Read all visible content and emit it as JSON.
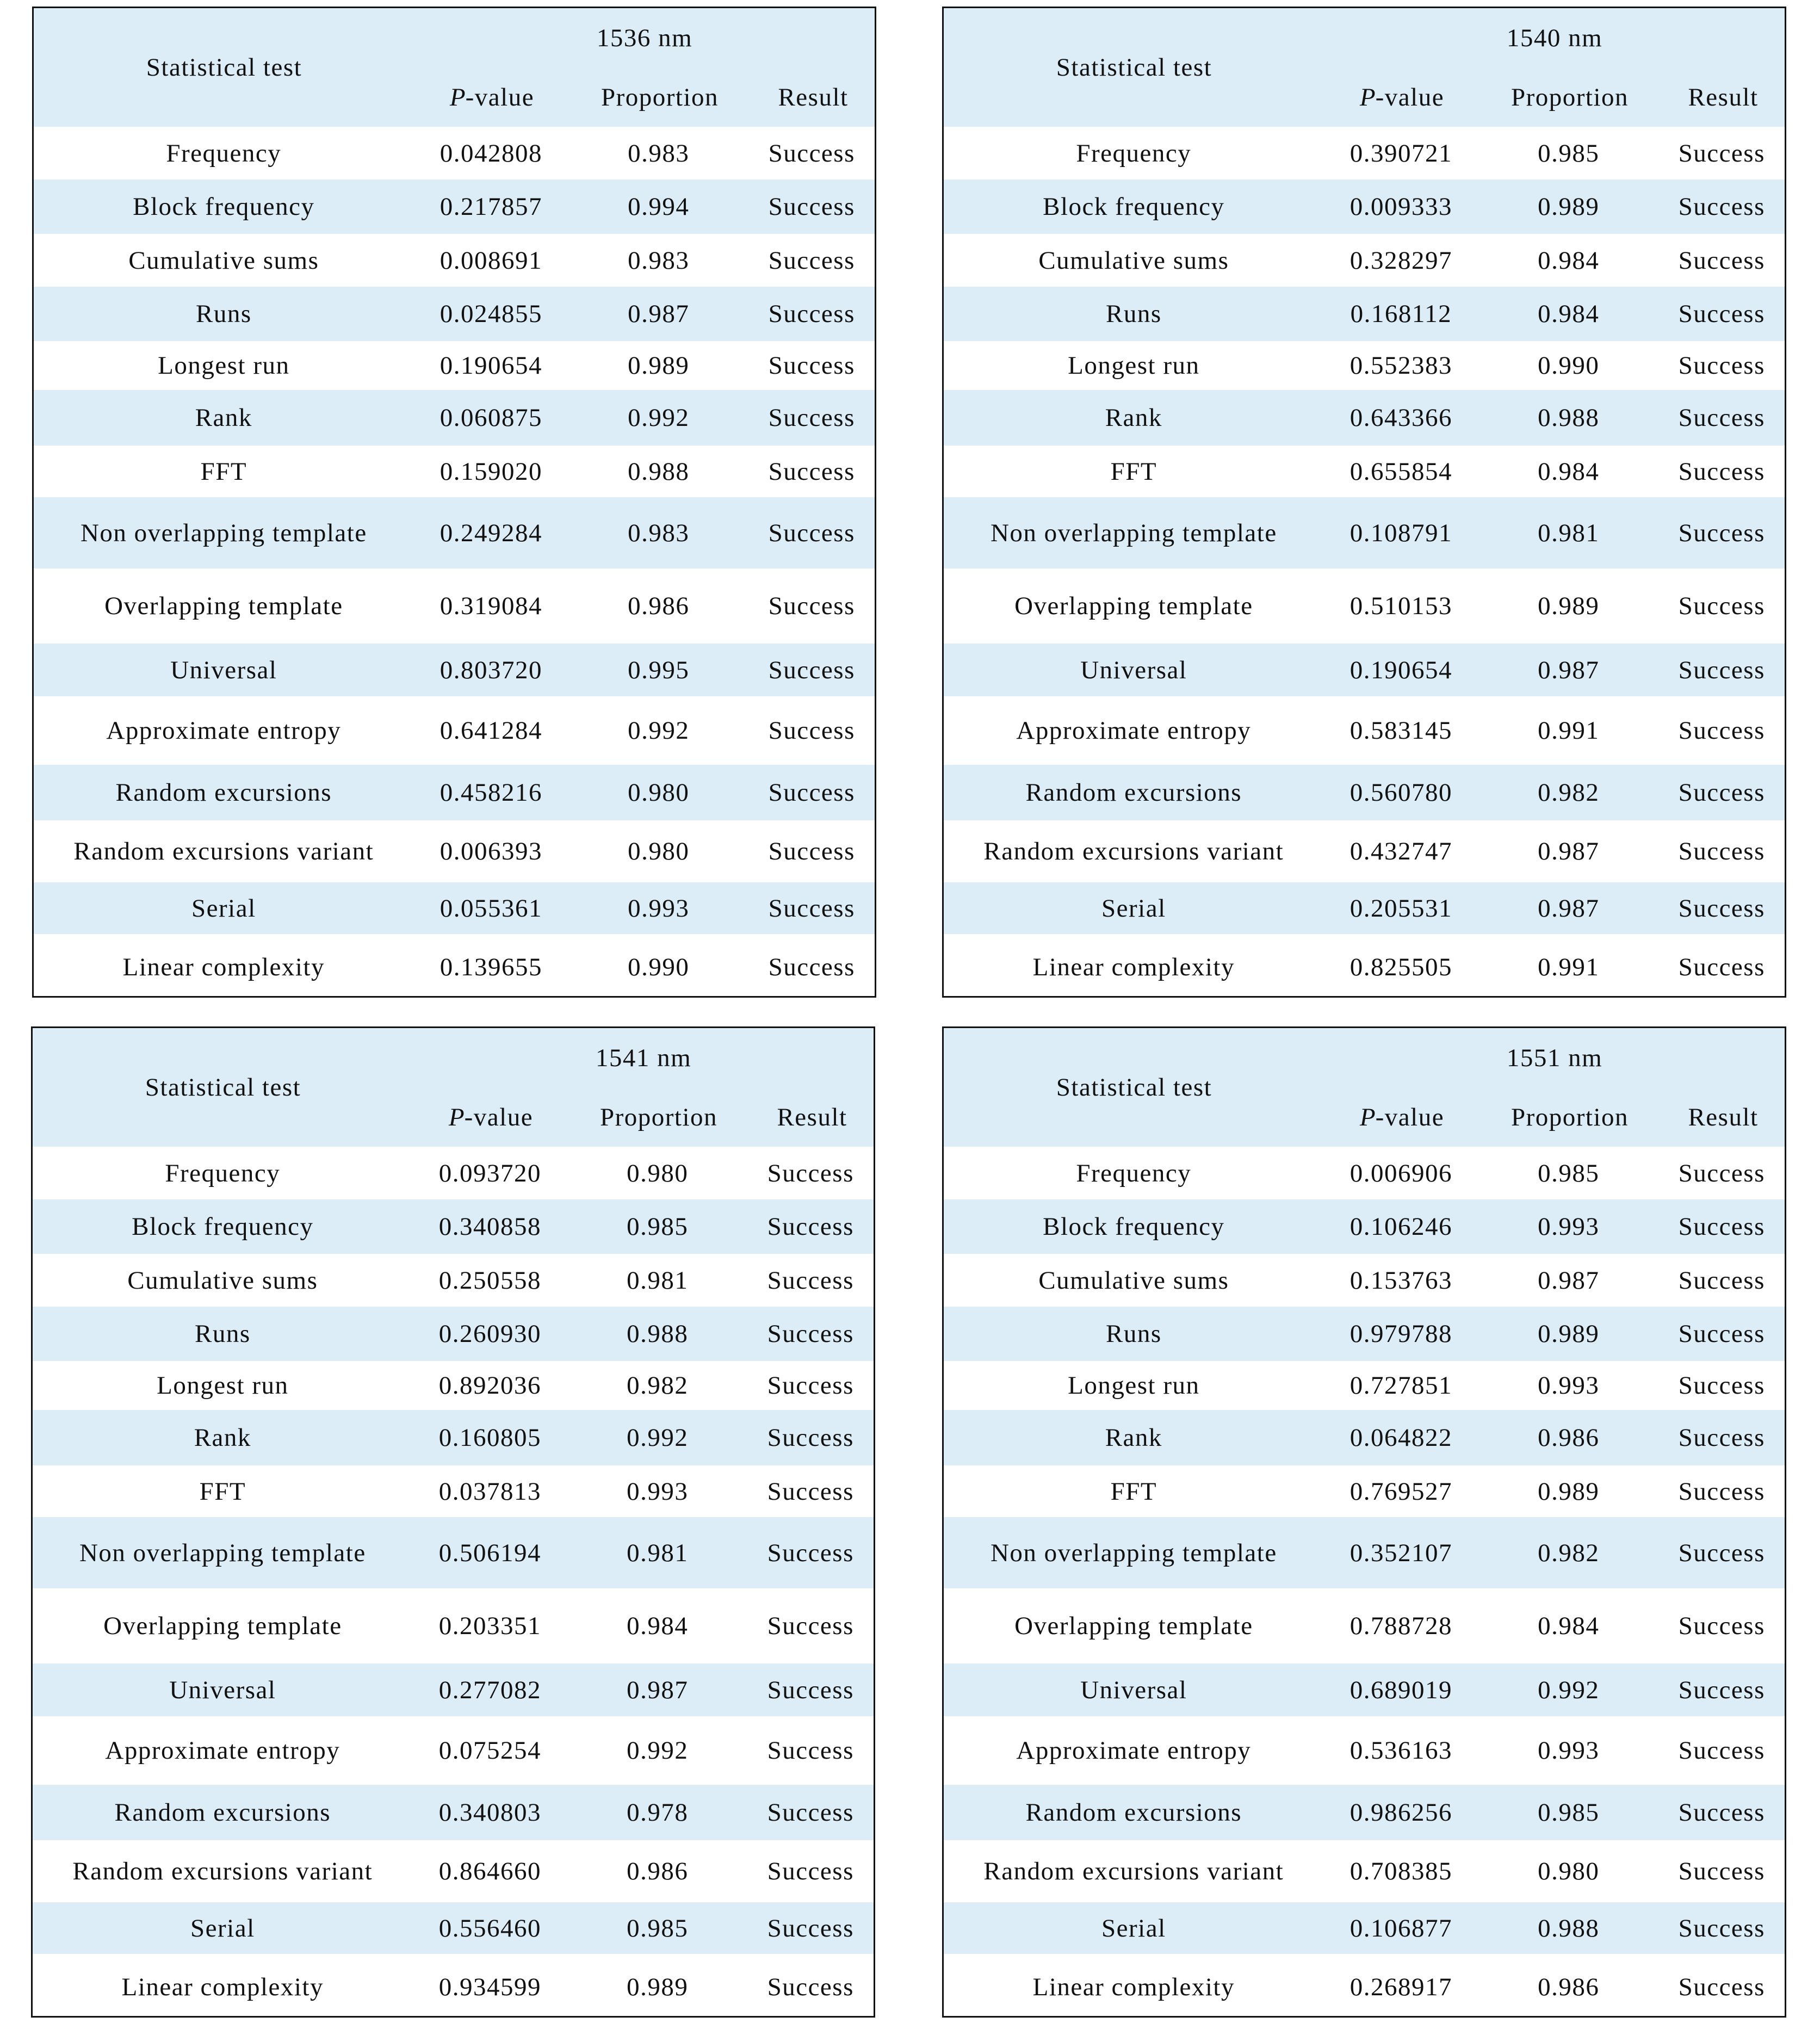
{
  "headers": {
    "statistical_test": "Statistical test",
    "p_italic": "P",
    "p_suffix": "-value",
    "proportion": "Proportion",
    "result": "Result"
  },
  "row_bg_color": "#dcedf8",
  "tests": [
    "Frequency",
    "Block frequency",
    "Cumulative sums",
    "Runs",
    "Longest run",
    "Rank",
    "FFT",
    "Non overlapping template",
    "Overlapping template",
    "Universal",
    "Approximate entropy",
    "Random excursions",
    "Random excursions variant",
    "Serial",
    "Linear complexity"
  ],
  "tables": [
    {
      "wavelength": "1536 nm",
      "p_values": [
        "0.042808",
        "0.217857",
        "0.008691",
        "0.024855",
        "0.190654",
        "0.060875",
        "0.159020",
        "0.249284",
        "0.319084",
        "0.803720",
        "0.641284",
        "0.458216",
        "0.006393",
        "0.055361",
        "0.139655"
      ],
      "proportions": [
        "0.983",
        "0.994",
        "0.983",
        "0.987",
        "0.989",
        "0.992",
        "0.988",
        "0.983",
        "0.986",
        "0.995",
        "0.992",
        "0.980",
        "0.980",
        "0.993",
        "0.990"
      ],
      "results": [
        "Success",
        "Success",
        "Success",
        "Success",
        "Success",
        "Success",
        "Success",
        "Success",
        "Success",
        "Success",
        "Success",
        "Success",
        "Success",
        "Success",
        "Success"
      ]
    },
    {
      "wavelength": "1540 nm",
      "p_values": [
        "0.390721",
        "0.009333",
        "0.328297",
        "0.168112",
        "0.552383",
        "0.643366",
        "0.655854",
        "0.108791",
        "0.510153",
        "0.190654",
        "0.583145",
        "0.560780",
        "0.432747",
        "0.205531",
        "0.825505"
      ],
      "proportions": [
        "0.985",
        "0.989",
        "0.984",
        "0.984",
        "0.990",
        "0.988",
        "0.984",
        "0.981",
        "0.989",
        "0.987",
        "0.991",
        "0.982",
        "0.987",
        "0.987",
        "0.991"
      ],
      "results": [
        "Success",
        "Success",
        "Success",
        "Success",
        "Success",
        "Success",
        "Success",
        "Success",
        "Success",
        "Success",
        "Success",
        "Success",
        "Success",
        "Success",
        "Success"
      ]
    },
    {
      "wavelength": "1541 nm",
      "p_values": [
        "0.093720",
        "0.340858",
        "0.250558",
        "0.260930",
        "0.892036",
        "0.160805",
        "0.037813",
        "0.506194",
        "0.203351",
        "0.277082",
        "0.075254",
        "0.340803",
        "0.864660",
        "0.556460",
        "0.934599"
      ],
      "proportions": [
        "0.980",
        "0.985",
        "0.981",
        "0.988",
        "0.982",
        "0.992",
        "0.993",
        "0.981",
        "0.984",
        "0.987",
        "0.992",
        "0.978",
        "0.986",
        "0.985",
        "0.989"
      ],
      "results": [
        "Success",
        "Success",
        "Success",
        "Success",
        "Success",
        "Success",
        "Success",
        "Success",
        "Success",
        "Success",
        "Success",
        "Success",
        "Success",
        "Success",
        "Success"
      ]
    },
    {
      "wavelength": "1551 nm",
      "p_values": [
        "0.006906",
        "0.106246",
        "0.153763",
        "0.979788",
        "0.727851",
        "0.064822",
        "0.769527",
        "0.352107",
        "0.788728",
        "0.689019",
        "0.536163",
        "0.986256",
        "0.708385",
        "0.106877",
        "0.268917"
      ],
      "proportions": [
        "0.985",
        "0.993",
        "0.987",
        "0.989",
        "0.993",
        "0.986",
        "0.989",
        "0.982",
        "0.984",
        "0.992",
        "0.993",
        "0.985",
        "0.980",
        "0.988",
        "0.986"
      ],
      "results": [
        "Success",
        "Success",
        "Success",
        "Success",
        "Success",
        "Success",
        "Success",
        "Success",
        "Success",
        "Success",
        "Success",
        "Success",
        "Success",
        "Success",
        "Success"
      ]
    }
  ]
}
